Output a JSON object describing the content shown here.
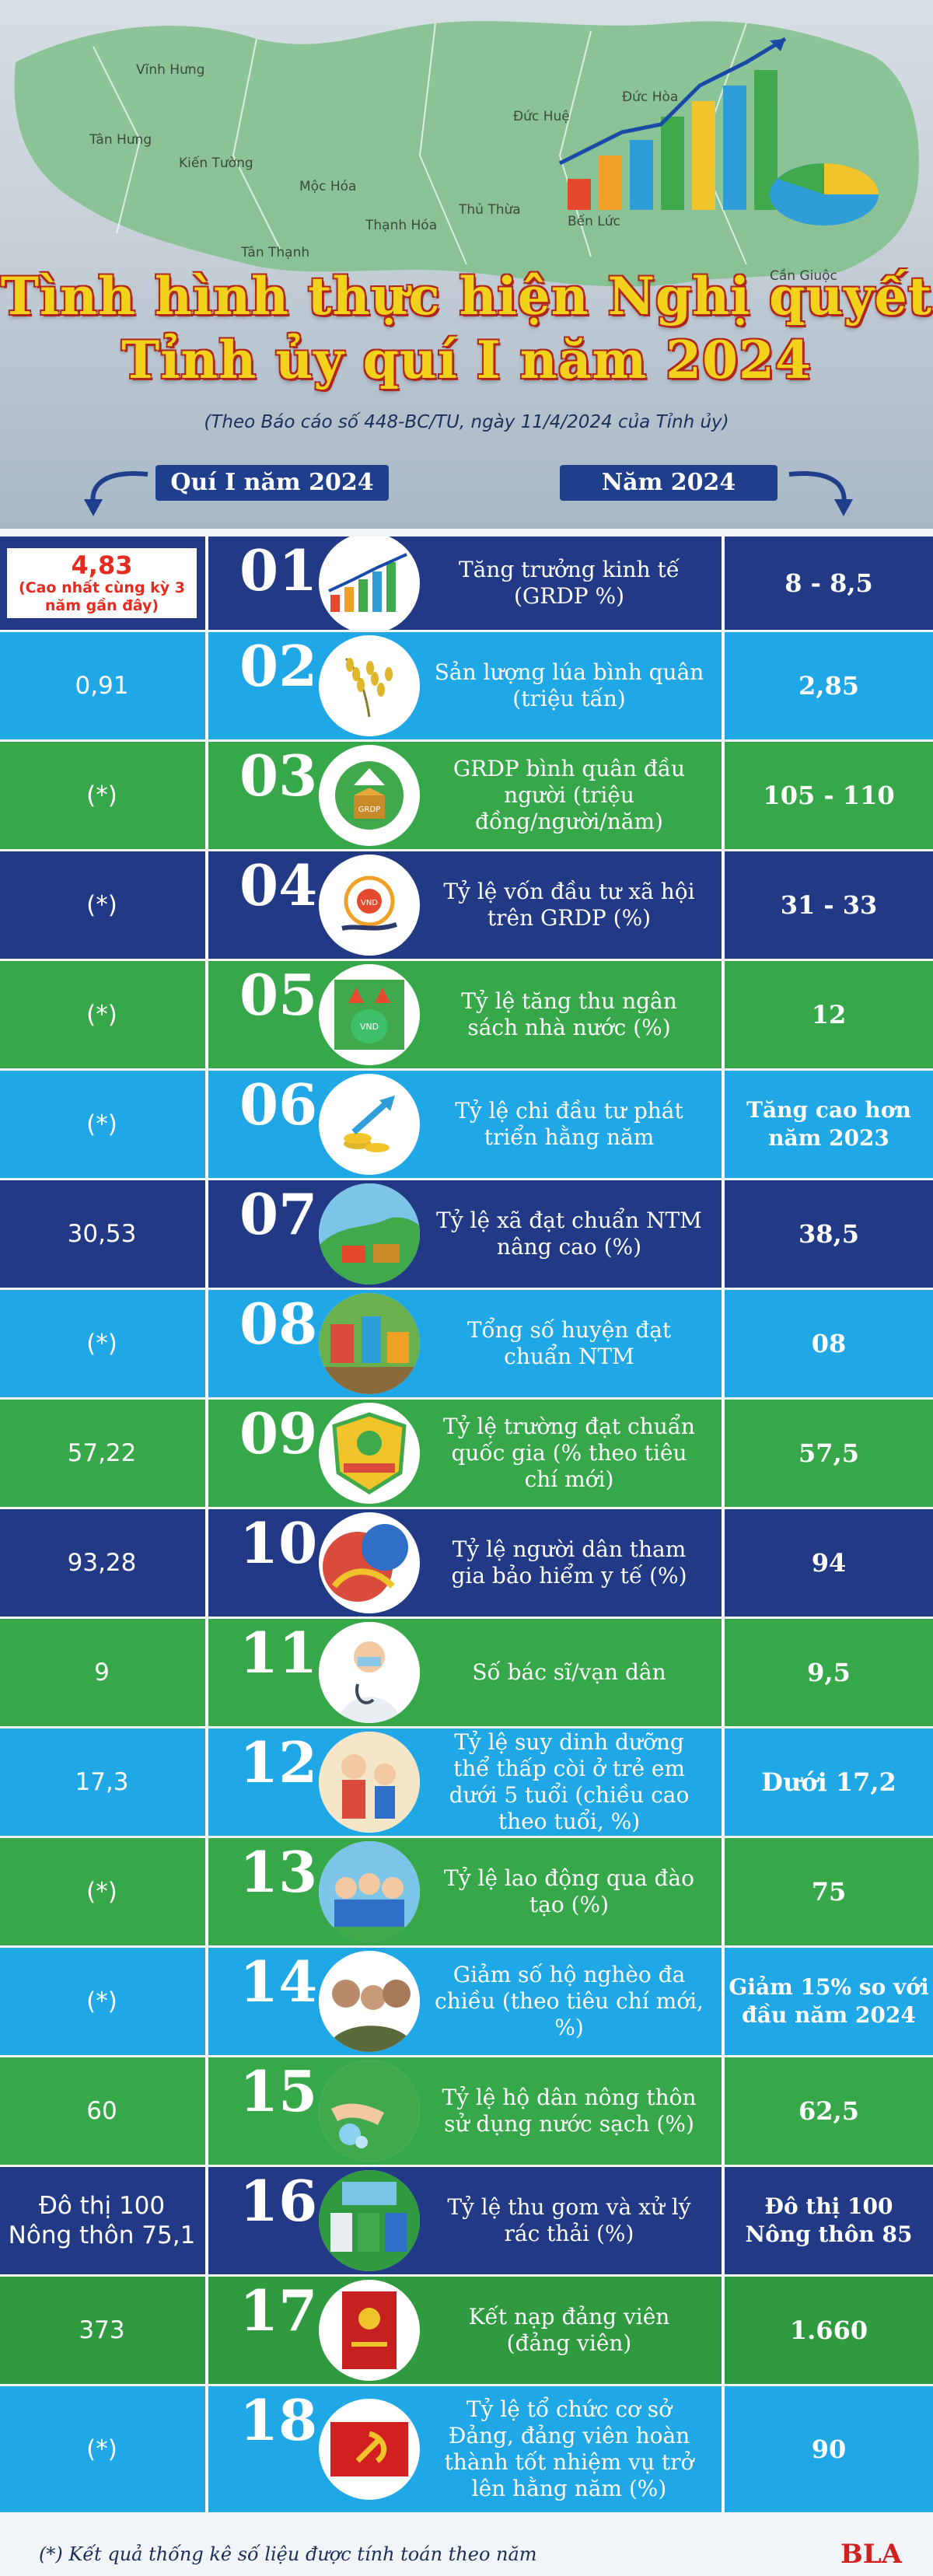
{
  "header": {
    "map_places": [
      "Vĩnh Hưng",
      "Tân Hưng",
      "Kiến Tường",
      "Mộc Hóa",
      "Tân Thạnh",
      "Thạnh Hóa",
      "Thủ Thừa",
      "Đức Huệ",
      "Đức Hòa",
      "Bến Lức",
      "Cần Giuộc"
    ],
    "title_line1": "Tình hình thực hiện Nghị quyết",
    "title_line2": "Tỉnh ủy quí I năm 2024",
    "source": "(Theo Báo cáo số 448-BC/TU, ngày 11/4/2024 của Tỉnh ủy)",
    "col_left": "Quí I năm 2024",
    "col_right": "Năm 2024"
  },
  "rows": [
    {
      "num": "01",
      "label": "Tăng trưởng kinh tế (GRDP %)",
      "left": "4,83",
      "left_note": "(Cao nhất cùng kỳ 3 năm gần đây)",
      "right": "8 - 8,5",
      "icon": "growth-chart-icon",
      "color": "navy"
    },
    {
      "num": "02",
      "label": "Sản lượng lúa bình quân (triệu tấn)",
      "left": "0,91",
      "right": "2,85",
      "icon": "rice-icon",
      "color": "sky"
    },
    {
      "num": "03",
      "label": "GRDP bình quân đầu người (triệu đồng/người/năm)",
      "left": "(*)",
      "right": "105 - 110",
      "icon": "grdp-box-icon",
      "color": "green"
    },
    {
      "num": "04",
      "label": "Tỷ lệ vốn đầu tư xã hội trên GRDP (%)",
      "left": "(*)",
      "right": "31 - 33",
      "icon": "investment-hand-icon",
      "color": "navy"
    },
    {
      "num": "05",
      "label": "Tỷ lệ tăng thu ngân sách nhà nước (%)",
      "left": "(*)",
      "right": "12",
      "icon": "budget-bag-icon",
      "color": "green"
    },
    {
      "num": "06",
      "label": "Tỷ lệ chi đầu tư phát triển hằng năm",
      "left": "(*)",
      "right": "Tăng cao hơn năm 2023",
      "icon": "coins-arrow-icon",
      "color": "sky"
    },
    {
      "num": "07",
      "label": "Tỷ lệ xã đạt chuẩn NTM nâng cao (%)",
      "left": "30,53",
      "right": "38,5",
      "icon": "village-icon",
      "color": "navy"
    },
    {
      "num": "08",
      "label": "Tổng số huyện đạt chuẩn NTM",
      "left": "(*)",
      "right": "08",
      "icon": "district-icon",
      "color": "sky"
    },
    {
      "num": "09",
      "label": "Tỷ lệ trường đạt chuẩn quốc gia (% theo tiêu chí mới)",
      "left": "57,22",
      "right": "57,5",
      "icon": "school-badge-icon",
      "color": "green"
    },
    {
      "num": "10",
      "label": "Tỷ lệ người dân tham gia bảo hiểm y tế (%)",
      "left": "93,28",
      "right": "94",
      "icon": "health-insurance-icon",
      "color": "navy"
    },
    {
      "num": "11",
      "label": "Số bác sĩ/vạn dân",
      "left": "9",
      "right": "9,5",
      "icon": "doctor-icon",
      "color": "green"
    },
    {
      "num": "12",
      "label": "Tỷ lệ suy dinh dưỡng thể thấp còi ở trẻ em dưới 5 tuổi (chiều cao theo tuổi, %)",
      "left": "17,3",
      "right": "Dưới 17,2",
      "icon": "children-icon",
      "color": "sky"
    },
    {
      "num": "13",
      "label": "Tỷ lệ lao động qua đào tạo (%)",
      "left": "(*)",
      "right": "75",
      "icon": "workers-icon",
      "color": "green"
    },
    {
      "num": "14",
      "label": "Giảm số hộ nghèo đa chiều (theo tiêu chí mới, %)",
      "left": "(*)",
      "right": "Giảm 15% so với đầu năm 2024",
      "icon": "family-icon",
      "color": "sky"
    },
    {
      "num": "15",
      "label": "Tỷ lệ hộ dân nông thôn sử dụng nước sạch (%)",
      "left": "60",
      "right": "62,5",
      "icon": "clean-water-icon",
      "color": "green"
    },
    {
      "num": "16",
      "label": "Tỷ lệ thu gom và xử lý rác thải (%)",
      "left": "Đô thị 100\nNông thôn 75,1",
      "right": "Đô thị 100\nNông thôn 85",
      "icon": "waste-bins-icon",
      "color": "navy"
    },
    {
      "num": "17",
      "label": "Kết nạp đảng viên (đảng viên)",
      "left": "373",
      "right": "1.660",
      "icon": "party-card-icon",
      "color": "dgreen"
    },
    {
      "num": "18",
      "label": "Tỷ lệ tổ chức cơ sở Đảng, đảng viên hoàn thành tốt nhiệm vụ trở lên hằng năm (%)",
      "left": "(*)",
      "right": "90",
      "icon": "party-flag-icon",
      "color": "sky"
    }
  ],
  "footer": {
    "note": "(*) Kết quả thống kê số liệu được tính toán theo năm",
    "logo": "BLA"
  },
  "colors": {
    "navy": "#223a85",
    "sky": "#1fa7e6",
    "green": "#37a84a",
    "dgreen": "#2f9a40",
    "title_yellow": "#f2d21a",
    "title_red": "#b1261c",
    "accent_red": "#e52b20"
  }
}
